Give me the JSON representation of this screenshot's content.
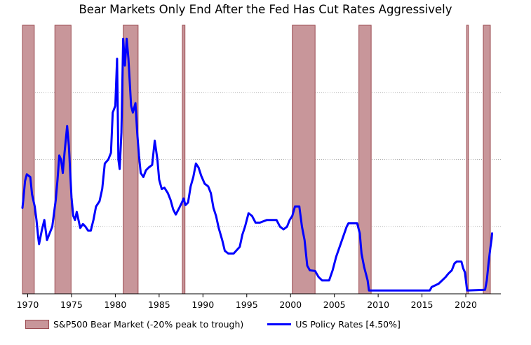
{
  "chart_data": {
    "type": "line",
    "title": "Bear Markets Only End After the Fed Has Cut Rates Aggressively",
    "xlabel": "",
    "ylabel": "",
    "xlim": [
      1969.4,
      2024.0
    ],
    "ylim": [
      0,
      20
    ],
    "x_ticks": [
      1970,
      1975,
      1980,
      1985,
      1990,
      1995,
      2000,
      2005,
      2010,
      2015,
      2020
    ],
    "grid": "horizontal dotted",
    "legend_position": "bottom-left",
    "colors": {
      "bear_fill": "#c8969a",
      "bear_edge": "#9b4c52",
      "line": "#0000ff",
      "grid": "#b0b0b0"
    },
    "bear_markets": {
      "name": "S&P500 Bear Market (-20% peak to trough)",
      "periods": [
        [
          1969.4,
          1970.75
        ],
        [
          1973.1,
          1974.95
        ],
        [
          1980.9,
          1982.6
        ],
        [
          1987.65,
          1987.95
        ],
        [
          2000.2,
          2002.8
        ],
        [
          2007.8,
          2009.2
        ],
        [
          2020.1,
          2020.3
        ],
        [
          2022.0,
          2022.8
        ]
      ]
    },
    "series": [
      {
        "name": "US Policy Rates [4.50%]",
        "points": [
          [
            1969.4,
            6.4
          ],
          [
            1969.5,
            7.0
          ],
          [
            1969.7,
            8.4
          ],
          [
            1969.9,
            8.9
          ],
          [
            1970.3,
            8.7
          ],
          [
            1970.5,
            7.4
          ],
          [
            1970.8,
            6.5
          ],
          [
            1971.0,
            5.5
          ],
          [
            1971.2,
            4.2
          ],
          [
            1971.3,
            3.7
          ],
          [
            1971.6,
            4.7
          ],
          [
            1971.9,
            5.5
          ],
          [
            1972.2,
            4.0
          ],
          [
            1972.5,
            4.5
          ],
          [
            1972.8,
            5.0
          ],
          [
            1973.2,
            7.0
          ],
          [
            1973.4,
            8.5
          ],
          [
            1973.6,
            10.3
          ],
          [
            1973.8,
            10.0
          ],
          [
            1974.0,
            9.0
          ],
          [
            1974.2,
            10.5
          ],
          [
            1974.5,
            12.5
          ],
          [
            1974.7,
            11.0
          ],
          [
            1975.0,
            7.2
          ],
          [
            1975.2,
            5.8
          ],
          [
            1975.4,
            5.5
          ],
          [
            1975.6,
            6.1
          ],
          [
            1976.0,
            4.9
          ],
          [
            1976.3,
            5.2
          ],
          [
            1976.6,
            5.0
          ],
          [
            1976.9,
            4.7
          ],
          [
            1977.2,
            4.7
          ],
          [
            1977.5,
            5.5
          ],
          [
            1977.8,
            6.5
          ],
          [
            1978.2,
            6.9
          ],
          [
            1978.5,
            7.8
          ],
          [
            1978.8,
            9.7
          ],
          [
            1979.2,
            10.0
          ],
          [
            1979.5,
            10.5
          ],
          [
            1979.7,
            13.5
          ],
          [
            1980.0,
            14.0
          ],
          [
            1980.2,
            17.5
          ],
          [
            1980.35,
            10.0
          ],
          [
            1980.5,
            9.3
          ],
          [
            1980.7,
            12.0
          ],
          [
            1980.9,
            19.0
          ],
          [
            1981.1,
            17.0
          ],
          [
            1981.3,
            19.0
          ],
          [
            1981.5,
            17.5
          ],
          [
            1981.8,
            14.0
          ],
          [
            1982.0,
            13.5
          ],
          [
            1982.3,
            14.2
          ],
          [
            1982.5,
            12.0
          ],
          [
            1982.7,
            10.3
          ],
          [
            1982.9,
            9.0
          ],
          [
            1983.2,
            8.7
          ],
          [
            1983.5,
            9.2
          ],
          [
            1983.8,
            9.4
          ],
          [
            1984.2,
            9.6
          ],
          [
            1984.5,
            11.4
          ],
          [
            1984.8,
            10.0
          ],
          [
            1985.0,
            8.5
          ],
          [
            1985.3,
            7.8
          ],
          [
            1985.6,
            7.9
          ],
          [
            1986.0,
            7.5
          ],
          [
            1986.3,
            7.0
          ],
          [
            1986.6,
            6.3
          ],
          [
            1986.9,
            5.9
          ],
          [
            1987.3,
            6.4
          ],
          [
            1987.6,
            6.8
          ],
          [
            1987.8,
            7.1
          ],
          [
            1988.0,
            6.6
          ],
          [
            1988.3,
            6.8
          ],
          [
            1988.6,
            8.0
          ],
          [
            1988.9,
            8.7
          ],
          [
            1989.2,
            9.7
          ],
          [
            1989.5,
            9.4
          ],
          [
            1989.8,
            8.8
          ],
          [
            1990.2,
            8.2
          ],
          [
            1990.6,
            8.0
          ],
          [
            1990.9,
            7.5
          ],
          [
            1991.2,
            6.4
          ],
          [
            1991.5,
            5.8
          ],
          [
            1991.8,
            4.9
          ],
          [
            1992.2,
            4.0
          ],
          [
            1992.5,
            3.2
          ],
          [
            1992.9,
            3.0
          ],
          [
            1993.5,
            3.0
          ],
          [
            1994.2,
            3.5
          ],
          [
            1994.5,
            4.4
          ],
          [
            1994.8,
            5.0
          ],
          [
            1995.2,
            6.0
          ],
          [
            1995.6,
            5.8
          ],
          [
            1996.0,
            5.3
          ],
          [
            1996.5,
            5.3
          ],
          [
            1997.3,
            5.5
          ],
          [
            1998.4,
            5.5
          ],
          [
            1998.8,
            5.0
          ],
          [
            1999.2,
            4.8
          ],
          [
            1999.6,
            5.0
          ],
          [
            1999.9,
            5.5
          ],
          [
            2000.2,
            5.8
          ],
          [
            2000.5,
            6.5
          ],
          [
            2001.0,
            6.5
          ],
          [
            2001.3,
            5.0
          ],
          [
            2001.6,
            4.0
          ],
          [
            2001.9,
            2.1
          ],
          [
            2002.2,
            1.75
          ],
          [
            2002.8,
            1.7
          ],
          [
            2003.2,
            1.25
          ],
          [
            2003.6,
            1.0
          ],
          [
            2004.4,
            1.0
          ],
          [
            2004.8,
            1.75
          ],
          [
            2005.2,
            2.75
          ],
          [
            2005.6,
            3.5
          ],
          [
            2006.0,
            4.25
          ],
          [
            2006.4,
            5.0
          ],
          [
            2006.6,
            5.25
          ],
          [
            2007.6,
            5.25
          ],
          [
            2007.9,
            4.5
          ],
          [
            2008.1,
            3.0
          ],
          [
            2008.4,
            2.0
          ],
          [
            2008.8,
            1.0
          ],
          [
            2008.95,
            0.25
          ],
          [
            2015.9,
            0.25
          ],
          [
            2016.1,
            0.5
          ],
          [
            2016.9,
            0.75
          ],
          [
            2017.3,
            1.0
          ],
          [
            2017.7,
            1.25
          ],
          [
            2018.0,
            1.5
          ],
          [
            2018.4,
            1.75
          ],
          [
            2018.7,
            2.25
          ],
          [
            2018.95,
            2.4
          ],
          [
            2019.5,
            2.4
          ],
          [
            2019.7,
            1.9
          ],
          [
            2019.9,
            1.6
          ],
          [
            2020.15,
            0.25
          ],
          [
            2022.2,
            0.3
          ],
          [
            2022.4,
            1.0
          ],
          [
            2022.6,
            2.3
          ],
          [
            2022.8,
            3.4
          ],
          [
            2022.95,
            4.1
          ],
          [
            2023.0,
            4.5
          ]
        ]
      }
    ]
  },
  "legend": {
    "bear_label": "S&P500 Bear Market (-20% peak to trough)",
    "line_label": "US Policy Rates [4.50%]"
  }
}
